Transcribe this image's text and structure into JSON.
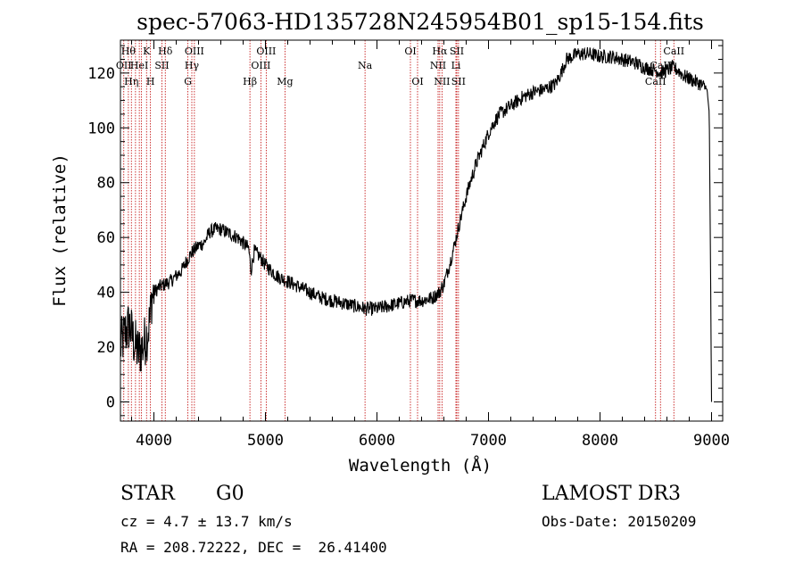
{
  "chart_data": {
    "type": "line",
    "title": "spec-57063-HD135728N245954B01_sp15-154.fits",
    "xlabel": "Wavelength (Å)",
    "ylabel": "Flux (relative)",
    "xlim": [
      3700,
      9100
    ],
    "ylim": [
      -7,
      132
    ],
    "x_ticks": [
      4000,
      5000,
      6000,
      7000,
      8000,
      9000
    ],
    "y_ticks": [
      0,
      20,
      40,
      60,
      80,
      100,
      120
    ],
    "grid": false,
    "legend": "none",
    "series": [
      {
        "x": [
          3700,
          3740,
          3780,
          3820,
          3860,
          3900,
          3940,
          3965,
          3980,
          4000,
          4050,
          4100,
          4150,
          4200,
          4250,
          4300,
          4350,
          4400,
          4450,
          4500,
          4550,
          4600,
          4650,
          4700,
          4750,
          4800,
          4850,
          4870,
          4900,
          4950,
          5000,
          5050,
          5100,
          5150,
          5200,
          5250,
          5300,
          5400,
          5500,
          5600,
          5700,
          5800,
          5900,
          6000,
          6100,
          6200,
          6300,
          6400,
          6500,
          6560,
          6600,
          6650,
          6700,
          6750,
          6800,
          6850,
          6900,
          6950,
          7000,
          7050,
          7100,
          7200,
          7300,
          7400,
          7500,
          7600,
          7650,
          7700,
          7800,
          7900,
          8000,
          8100,
          8200,
          8300,
          8400,
          8500,
          8550,
          8600,
          8650,
          8700,
          8750,
          8800,
          8850,
          8900,
          8960,
          8980,
          9000
        ],
        "y": [
          20,
          25,
          28,
          22,
          18,
          20,
          25,
          30,
          38,
          40,
          42,
          43,
          44,
          46,
          48,
          52,
          55,
          57,
          58,
          62,
          63,
          63,
          62,
          61,
          60,
          58,
          56,
          48,
          55,
          53,
          50,
          48,
          46,
          45,
          44,
          43,
          42,
          40,
          38,
          37,
          36,
          35,
          34,
          34,
          35,
          36,
          37,
          37,
          38,
          40,
          43,
          50,
          58,
          67,
          75,
          82,
          88,
          93,
          98,
          102,
          105,
          108,
          111,
          113,
          114,
          116,
          120,
          125,
          127,
          127,
          126,
          126,
          125,
          124,
          122,
          121,
          120,
          121,
          122,
          121,
          119,
          118,
          117,
          116,
          114,
          105,
          0
        ]
      }
    ],
    "lines": [
      {
        "x": 3730,
        "label": "OII",
        "row": 2
      },
      {
        "x": 3771,
        "label": "Hθ",
        "row": 1
      },
      {
        "x": 3798,
        "label": "Hη",
        "row": 3
      },
      {
        "x": 3835,
        "label": "",
        "row": 0
      },
      {
        "x": 3869,
        "label": "HeI",
        "row": 2
      },
      {
        "x": 3889,
        "label": "",
        "row": 0
      },
      {
        "x": 3934,
        "label": "K",
        "row": 1
      },
      {
        "x": 3969,
        "label": "H",
        "row": 3
      },
      {
        "x": 4072,
        "label": "SII",
        "row": 2
      },
      {
        "x": 4102,
        "label": "Hδ",
        "row": 1
      },
      {
        "x": 4305,
        "label": "G",
        "row": 3
      },
      {
        "x": 4340,
        "label": "Hγ",
        "row": 2
      },
      {
        "x": 4363,
        "label": "OIII",
        "row": 1
      },
      {
        "x": 4861,
        "label": "Hβ",
        "row": 3
      },
      {
        "x": 4959,
        "label": "OIII",
        "row": 2
      },
      {
        "x": 5007,
        "label": "OIII",
        "row": 1
      },
      {
        "x": 5175,
        "label": "Mg",
        "row": 3
      },
      {
        "x": 5893,
        "label": "Na",
        "row": 2
      },
      {
        "x": 6300,
        "label": "OI",
        "row": 1
      },
      {
        "x": 6364,
        "label": "OI",
        "row": 3
      },
      {
        "x": 6548,
        "label": "NII",
        "row": 2
      },
      {
        "x": 6563,
        "label": "Hα",
        "row": 1
      },
      {
        "x": 6583,
        "label": "NII",
        "row": 3
      },
      {
        "x": 6708,
        "label": "Li",
        "row": 2
      },
      {
        "x": 6716,
        "label": "SII",
        "row": 1
      },
      {
        "x": 6731,
        "label": "SII",
        "row": 3
      },
      {
        "x": 8498,
        "label": "CaII",
        "row": 3
      },
      {
        "x": 8542,
        "label": "CaII",
        "row": 2
      },
      {
        "x": 8662,
        "label": "CaII",
        "row": 1
      }
    ]
  },
  "info": {
    "class_label": "STAR",
    "subclass_label": "G0",
    "survey": "LAMOST DR3",
    "redshift": "cz = 4.7 ± 13.7 km/s",
    "obs_date": "Obs-Date: 20150209",
    "coords": "RA = 208.72222, DEC =  26.41400"
  },
  "colors": {
    "spectrum": "#000000",
    "line_markers": "#c00000",
    "axes": "#000000"
  }
}
